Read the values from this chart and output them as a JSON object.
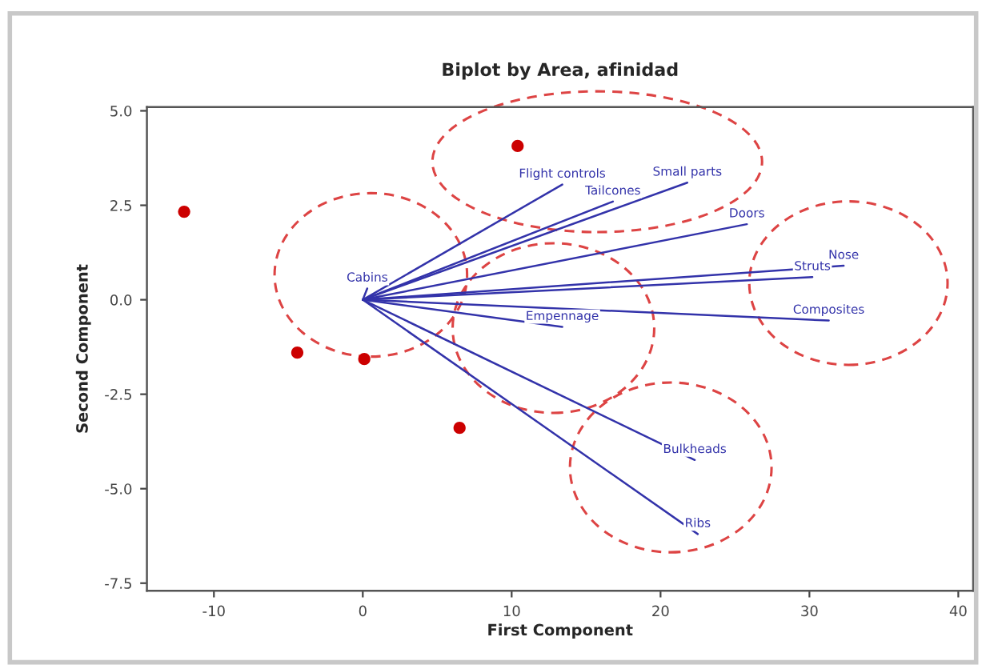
{
  "chart_data": {
    "type": "scatter",
    "title": "Biplot by Area, afinidad",
    "xlabel": "First Component",
    "ylabel": "Second Component",
    "xlim": [
      -14.5,
      41
    ],
    "ylim": [
      -7.7,
      5.1
    ],
    "xticks": [
      -10,
      0,
      10,
      20,
      30,
      40
    ],
    "yticks": [
      -7.5,
      {
        "value": -5,
        "label": "-5.0"
      },
      -2.5,
      {
        "value": 0,
        "label": "0.0"
      },
      2.5,
      {
        "value": 5,
        "label": "5.0"
      }
    ],
    "series": [
      {
        "marker": "circle",
        "color": "#cc0000",
        "x": [
          -12.0,
          10.4,
          -4.4,
          0.1,
          6.5
        ],
        "values": [
          2.33,
          4.07,
          -1.4,
          -1.57,
          -3.39
        ]
      },
      {
        "type": "line",
        "name": "Flight controls",
        "color": "#3333aa",
        "x": [
          0,
          13.4
        ],
        "values": [
          0,
          3.05
        ]
      },
      {
        "type": "line",
        "name": "Tailcones",
        "color": "#3333aa",
        "x": [
          0,
          16.8
        ],
        "values": [
          0,
          2.6
        ]
      },
      {
        "type": "line",
        "name": "Small parts",
        "color": "#3333aa",
        "x": [
          0,
          21.8
        ],
        "values": [
          0,
          3.1
        ]
      },
      {
        "type": "line",
        "name": "Doors",
        "color": "#3333aa",
        "x": [
          0,
          25.8
        ],
        "values": [
          0,
          2.0
        ]
      },
      {
        "type": "line",
        "name": "Nose",
        "color": "#3333aa",
        "x": [
          0,
          32.3
        ],
        "values": [
          0,
          0.9
        ]
      },
      {
        "type": "line",
        "name": "Struts",
        "color": "#3333aa",
        "x": [
          0,
          30.2
        ],
        "values": [
          0,
          0.6
        ]
      },
      {
        "type": "line",
        "name": "Cabins",
        "color": "#3333aa",
        "x": [
          0,
          0.3
        ],
        "values": [
          0,
          0.3
        ]
      },
      {
        "type": "line",
        "name": "Composites",
        "color": "#3333aa",
        "x": [
          0,
          31.3
        ],
        "values": [
          0,
          -0.55
        ]
      },
      {
        "type": "line",
        "name": "Empennage",
        "color": "#3333aa",
        "x": [
          0,
          13.4
        ],
        "values": [
          0,
          -0.72
        ]
      },
      {
        "type": "line",
        "name": "Bulkheads",
        "color": "#3333aa",
        "x": [
          0,
          22.3
        ],
        "values": [
          0,
          -4.24
        ]
      },
      {
        "type": "line",
        "name": "Ribs",
        "color": "#3333aa",
        "x": [
          0,
          22.5
        ],
        "values": [
          0,
          -6.2
        ]
      }
    ]
  }
}
